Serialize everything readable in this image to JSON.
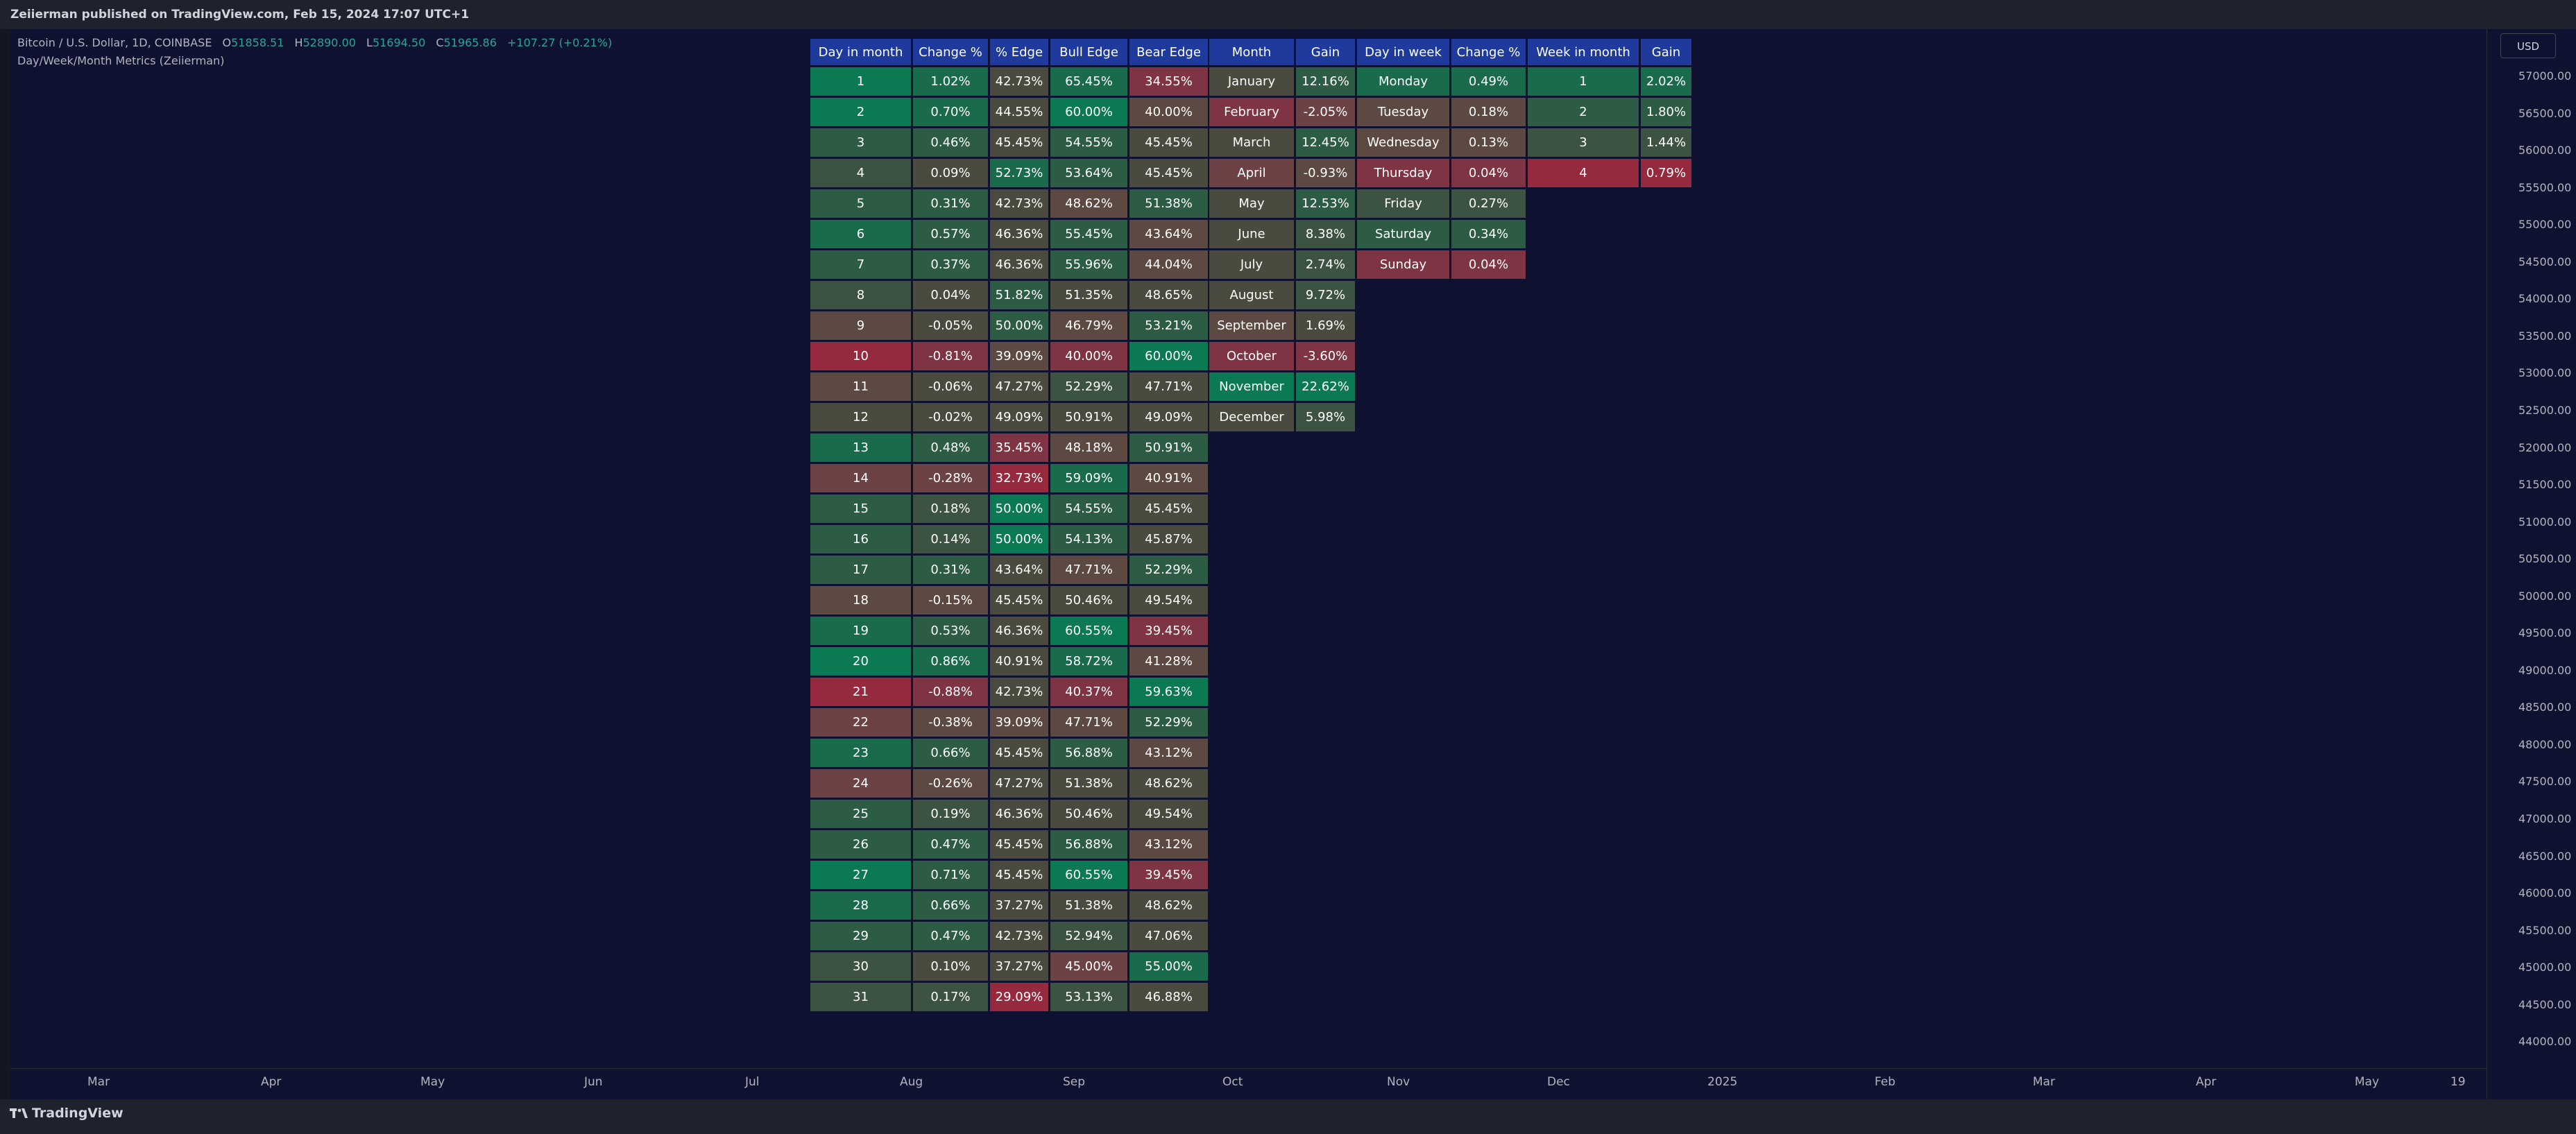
{
  "publish_line": "Zeiierman published on TradingView.com, Feb 15, 2024 17:07 UTC+1",
  "ohlc": {
    "symbol": "Bitcoin / U.S. Dollar, 1D, COINBASE",
    "o_label": "O",
    "o": "51858.51",
    "h_label": "H",
    "h": "52890.00",
    "l_label": "L",
    "l": "51694.50",
    "c_label": "C",
    "c": "51965.86",
    "change": "+107.27 (+0.21%)"
  },
  "indicator_name": "Day/Week/Month Metrics (Zeiierman)",
  "currency": "USD",
  "price_ticks": [
    "57000.00",
    "56500.00",
    "56000.00",
    "55500.00",
    "55000.00",
    "54500.00",
    "54000.00",
    "53500.00",
    "53000.00",
    "52500.00",
    "52000.00",
    "51500.00",
    "51000.00",
    "50500.00",
    "50000.00",
    "49500.00",
    "49000.00",
    "48500.00",
    "48000.00",
    "47500.00",
    "47000.00",
    "46500.00",
    "46000.00",
    "45500.00",
    "45000.00",
    "44500.00",
    "44000.00"
  ],
  "time_ticks": [
    "Mar",
    "Apr",
    "May",
    "Jun",
    "Jul",
    "Aug",
    "Sep",
    "Oct",
    "Nov",
    "Dec",
    "2025",
    "Feb",
    "Mar",
    "Apr",
    "May",
    "19"
  ],
  "footer_brand": "TradingView",
  "colors": {
    "header": "#1e3a9c",
    "strong_green": "#0b7a52",
    "strong_red": "#952a3f",
    "neutral": "#4a4b3e"
  },
  "tables": {
    "dom": {
      "headers": [
        "Day in month",
        "Change %",
        "% Edge",
        "Bull Edge",
        "Bear Edge"
      ],
      "rows": [
        [
          "1",
          "1.02%",
          "42.73%",
          "65.45%",
          "34.55%"
        ],
        [
          "2",
          "0.70%",
          "44.55%",
          "60.00%",
          "40.00%"
        ],
        [
          "3",
          "0.46%",
          "45.45%",
          "54.55%",
          "45.45%"
        ],
        [
          "4",
          "0.09%",
          "52.73%",
          "53.64%",
          "45.45%"
        ],
        [
          "5",
          "0.31%",
          "42.73%",
          "48.62%",
          "51.38%"
        ],
        [
          "6",
          "0.57%",
          "46.36%",
          "55.45%",
          "43.64%"
        ],
        [
          "7",
          "0.37%",
          "46.36%",
          "55.96%",
          "44.04%"
        ],
        [
          "8",
          "0.04%",
          "51.82%",
          "51.35%",
          "48.65%"
        ],
        [
          "9",
          "-0.05%",
          "50.00%",
          "46.79%",
          "53.21%"
        ],
        [
          "10",
          "-0.81%",
          "39.09%",
          "40.00%",
          "60.00%"
        ],
        [
          "11",
          "-0.06%",
          "47.27%",
          "52.29%",
          "47.71%"
        ],
        [
          "12",
          "-0.02%",
          "49.09%",
          "50.91%",
          "49.09%"
        ],
        [
          "13",
          "0.48%",
          "35.45%",
          "48.18%",
          "50.91%"
        ],
        [
          "14",
          "-0.28%",
          "32.73%",
          "59.09%",
          "40.91%"
        ],
        [
          "15",
          "0.18%",
          "50.00%",
          "54.55%",
          "45.45%"
        ],
        [
          "16",
          "0.14%",
          "50.00%",
          "54.13%",
          "45.87%"
        ],
        [
          "17",
          "0.31%",
          "43.64%",
          "47.71%",
          "52.29%"
        ],
        [
          "18",
          "-0.15%",
          "45.45%",
          "50.46%",
          "49.54%"
        ],
        [
          "19",
          "0.53%",
          "46.36%",
          "60.55%",
          "39.45%"
        ],
        [
          "20",
          "0.86%",
          "40.91%",
          "58.72%",
          "41.28%"
        ],
        [
          "21",
          "-0.88%",
          "42.73%",
          "40.37%",
          "59.63%"
        ],
        [
          "22",
          "-0.38%",
          "39.09%",
          "47.71%",
          "52.29%"
        ],
        [
          "23",
          "0.66%",
          "45.45%",
          "56.88%",
          "43.12%"
        ],
        [
          "24",
          "-0.26%",
          "47.27%",
          "51.38%",
          "48.62%"
        ],
        [
          "25",
          "0.19%",
          "46.36%",
          "50.46%",
          "49.54%"
        ],
        [
          "26",
          "0.47%",
          "45.45%",
          "56.88%",
          "43.12%"
        ],
        [
          "27",
          "0.71%",
          "45.45%",
          "60.55%",
          "39.45%"
        ],
        [
          "28",
          "0.66%",
          "37.27%",
          "51.38%",
          "48.62%"
        ],
        [
          "29",
          "0.47%",
          "42.73%",
          "52.94%",
          "47.06%"
        ],
        [
          "30",
          "0.10%",
          "37.27%",
          "45.00%",
          "55.00%"
        ],
        [
          "31",
          "0.17%",
          "29.09%",
          "53.13%",
          "46.88%"
        ]
      ],
      "shades": [
        [
          "g1",
          "g2",
          "n",
          "g2",
          "r2"
        ],
        [
          "g1",
          "g2",
          "n",
          "g1",
          "r4"
        ],
        [
          "g3",
          "g3",
          "n",
          "g3",
          "n"
        ],
        [
          "g4",
          "n",
          "g2",
          "g3",
          "n"
        ],
        [
          "g3",
          "g3",
          "n",
          "r4",
          "g3"
        ],
        [
          "g2",
          "g3",
          "n",
          "g3",
          "r4"
        ],
        [
          "g3",
          "g3",
          "n",
          "g3",
          "r4"
        ],
        [
          "g4",
          "n",
          "g3",
          "n",
          "n"
        ],
        [
          "r4",
          "n",
          "g3",
          "r4",
          "g3"
        ],
        [
          "r1",
          "r2",
          "r4",
          "r2",
          "g1"
        ],
        [
          "r4",
          "n",
          "n",
          "g4",
          "n"
        ],
        [
          "n",
          "n",
          "n",
          "n",
          "n"
        ],
        [
          "g2",
          "g3",
          "r2",
          "r4",
          "g3"
        ],
        [
          "r3",
          "r3",
          "r1",
          "g2",
          "r4"
        ],
        [
          "g3",
          "g4",
          "g1",
          "g3",
          "n"
        ],
        [
          "g3",
          "g4",
          "g1",
          "g3",
          "n"
        ],
        [
          "g3",
          "g3",
          "n",
          "r4",
          "g3"
        ],
        [
          "r4",
          "r4",
          "n",
          "n",
          "n"
        ],
        [
          "g2",
          "g3",
          "n",
          "g1",
          "r2"
        ],
        [
          "g1",
          "g2",
          "n",
          "g2",
          "r4"
        ],
        [
          "r1",
          "r2",
          "n",
          "r2",
          "g1"
        ],
        [
          "r3",
          "r4",
          "r4",
          "r4",
          "g3"
        ],
        [
          "g2",
          "g3",
          "n",
          "g3",
          "r4"
        ],
        [
          "r3",
          "r4",
          "n",
          "n",
          "n"
        ],
        [
          "g3",
          "g4",
          "n",
          "n",
          "n"
        ],
        [
          "g3",
          "g3",
          "n",
          "g3",
          "r4"
        ],
        [
          "g1",
          "g3",
          "n",
          "g1",
          "r2"
        ],
        [
          "g2",
          "g3",
          "n",
          "n",
          "n"
        ],
        [
          "g3",
          "g3",
          "n",
          "g4",
          "n"
        ],
        [
          "g4",
          "n",
          "n",
          "r3",
          "g2"
        ],
        [
          "g4",
          "g4",
          "r1",
          "g4",
          "n"
        ]
      ]
    },
    "month": {
      "headers": [
        "Month",
        "Gain"
      ],
      "rows": [
        [
          "January",
          "12.16%"
        ],
        [
          "February",
          "-2.05%"
        ],
        [
          "March",
          "12.45%"
        ],
        [
          "April",
          "-0.93%"
        ],
        [
          "May",
          "12.53%"
        ],
        [
          "June",
          "8.38%"
        ],
        [
          "July",
          "2.74%"
        ],
        [
          "August",
          "9.72%"
        ],
        [
          "September",
          "1.69%"
        ],
        [
          "October",
          "-3.60%"
        ],
        [
          "November",
          "22.62%"
        ],
        [
          "December",
          "5.98%"
        ]
      ],
      "shades": [
        [
          "n",
          "g3"
        ],
        [
          "r2",
          "r3"
        ],
        [
          "n",
          "g3"
        ],
        [
          "r3",
          "r4"
        ],
        [
          "n",
          "g3"
        ],
        [
          "n",
          "g4"
        ],
        [
          "n",
          "g4"
        ],
        [
          "n",
          "g4"
        ],
        [
          "r4",
          "n"
        ],
        [
          "r2",
          "r2"
        ],
        [
          "g1",
          "g1"
        ],
        [
          "n",
          "g4"
        ]
      ]
    },
    "dow": {
      "headers": [
        "Day in week",
        "Change %"
      ],
      "rows": [
        [
          "Monday",
          "0.49%"
        ],
        [
          "Tuesday",
          "0.18%"
        ],
        [
          "Wednesday",
          "0.13%"
        ],
        [
          "Thursday",
          "0.04%"
        ],
        [
          "Friday",
          "0.27%"
        ],
        [
          "Saturday",
          "0.34%"
        ],
        [
          "Sunday",
          "0.04%"
        ]
      ],
      "shades": [
        [
          "g2",
          "g2"
        ],
        [
          "r4",
          "r4"
        ],
        [
          "r4",
          "r4"
        ],
        [
          "r2",
          "r2"
        ],
        [
          "g4",
          "g4"
        ],
        [
          "g3",
          "g3"
        ],
        [
          "r2",
          "r2"
        ]
      ]
    },
    "wom": {
      "headers": [
        "Week in month",
        "Gain"
      ],
      "rows": [
        [
          "1",
          "2.02%"
        ],
        [
          "2",
          "1.80%"
        ],
        [
          "3",
          "1.44%"
        ],
        [
          "4",
          "0.79%"
        ]
      ],
      "shades": [
        [
          "g2",
          "g2"
        ],
        [
          "g3",
          "g3"
        ],
        [
          "g4",
          "g4"
        ],
        [
          "r1",
          "r1"
        ]
      ]
    }
  }
}
